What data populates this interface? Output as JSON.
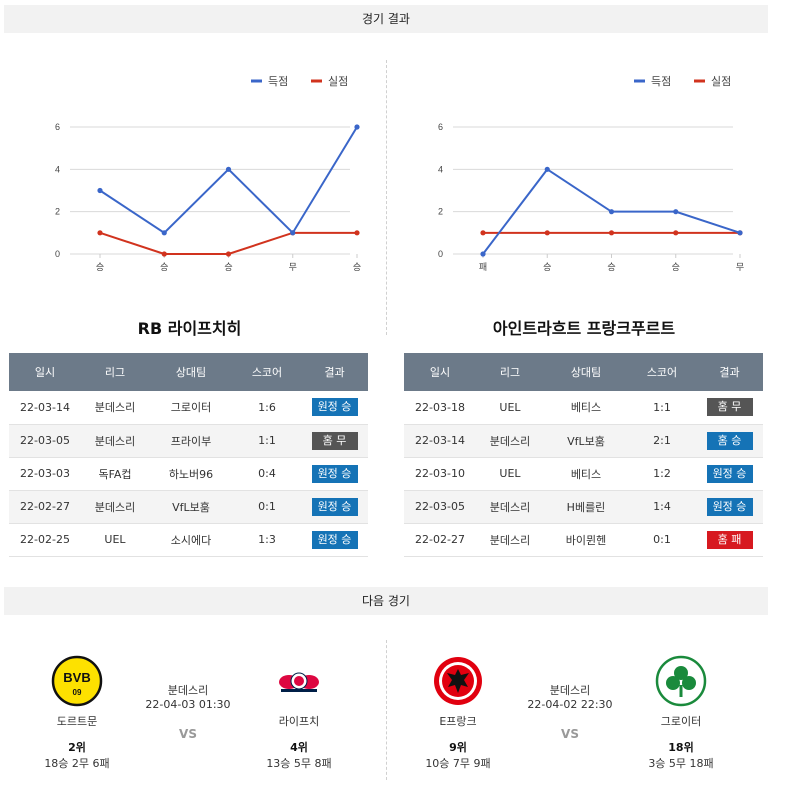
{
  "headers": {
    "results": "경기 결과",
    "next": "다음 경기"
  },
  "legend": {
    "scored": "득점",
    "conceded": "실점"
  },
  "colors": {
    "scored": "#3a66c9",
    "conceded": "#d1331e",
    "away_win": "#1573b6",
    "home_draw": "#555555",
    "home_loss": "#d71920"
  },
  "chart_data": [
    {
      "type": "line",
      "categories": [
        "승",
        "승",
        "승",
        "무",
        "승"
      ],
      "series": [
        {
          "name": "득점",
          "values": [
            3,
            1,
            4,
            1,
            6
          ]
        },
        {
          "name": "실점",
          "values": [
            1,
            0,
            0,
            1,
            1
          ]
        }
      ],
      "yticks": [
        0,
        2,
        4,
        6
      ],
      "ylim": [
        0,
        6
      ],
      "grid": true,
      "legend": "top-right"
    },
    {
      "type": "line",
      "categories": [
        "패",
        "승",
        "승",
        "승",
        "무"
      ],
      "series": [
        {
          "name": "득점",
          "values": [
            0,
            4,
            2,
            2,
            1
          ]
        },
        {
          "name": "실점",
          "values": [
            1,
            1,
            1,
            1,
            1
          ]
        }
      ],
      "yticks": [
        0,
        2,
        4,
        6
      ],
      "ylim": [
        0,
        6
      ],
      "grid": true,
      "legend": "top-right"
    }
  ],
  "columns": [
    "일시",
    "리그",
    "상대팀",
    "스코어",
    "결과"
  ],
  "teams": [
    {
      "title": "RB 라이프치히",
      "rows": [
        {
          "date": "22-03-14",
          "league": "분데스리",
          "opponent": "그로이터",
          "score": "1:6",
          "result": "원정 승",
          "color": "#1573b6"
        },
        {
          "date": "22-03-05",
          "league": "분데스리",
          "opponent": "프라이부",
          "score": "1:1",
          "result": "홈 무",
          "color": "#555555"
        },
        {
          "date": "22-03-03",
          "league": "독FA컵",
          "opponent": "하노버96",
          "score": "0:4",
          "result": "원정 승",
          "color": "#1573b6"
        },
        {
          "date": "22-02-27",
          "league": "분데스리",
          "opponent": "VfL보훔",
          "score": "0:1",
          "result": "원정 승",
          "color": "#1573b6"
        },
        {
          "date": "22-02-25",
          "league": "UEL",
          "opponent": "소시에다",
          "score": "1:3",
          "result": "원정 승",
          "color": "#1573b6"
        }
      ]
    },
    {
      "title": "아인트라흐트 프랑크푸르트",
      "rows": [
        {
          "date": "22-03-18",
          "league": "UEL",
          "opponent": "베티스",
          "score": "1:1",
          "result": "홈 무",
          "color": "#555555"
        },
        {
          "date": "22-03-14",
          "league": "분데스리",
          "opponent": "VfL보훔",
          "score": "2:1",
          "result": "홈 승",
          "color": "#1573b6"
        },
        {
          "date": "22-03-10",
          "league": "UEL",
          "opponent": "베티스",
          "score": "1:2",
          "result": "원정 승",
          "color": "#1573b6"
        },
        {
          "date": "22-03-05",
          "league": "분데스리",
          "opponent": "H베를린",
          "score": "1:4",
          "result": "원정 승",
          "color": "#1573b6"
        },
        {
          "date": "22-02-27",
          "league": "분데스리",
          "opponent": "바이뮌헨",
          "score": "0:1",
          "result": "홈 패",
          "color": "#d71920"
        }
      ]
    }
  ],
  "next_matches": [
    {
      "league": "분데스리",
      "datetime": "22-04-03 01:30",
      "vs": "VS",
      "home": {
        "name": "도르트문",
        "rank": "2위",
        "record": "18승 2무 6패",
        "logo": "bvb-logo-icon",
        "logo_text": "BVB",
        "logo_sub": "09"
      },
      "away": {
        "name": "라이프치",
        "rank": "4위",
        "record": "13승 5무 8패",
        "logo": "rb-leipzig-logo-icon"
      }
    },
    {
      "league": "분데스리",
      "datetime": "22-04-02 22:30",
      "vs": "VS",
      "home": {
        "name": "E프랑크",
        "rank": "9위",
        "record": "10승 7무 9패",
        "logo": "eintracht-logo-icon"
      },
      "away": {
        "name": "그로이터",
        "rank": "18위",
        "record": "3승 5무 18패",
        "logo": "greuther-fuerth-logo-icon"
      }
    }
  ]
}
